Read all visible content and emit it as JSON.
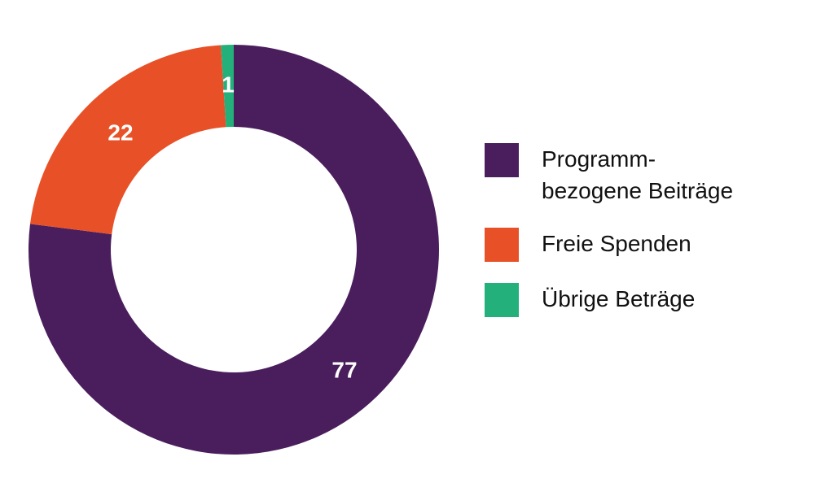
{
  "chart_data": {
    "type": "pie",
    "donut": true,
    "title": "",
    "legend_position": "right",
    "slices": [
      {
        "label": "Programm-\nbezogene Beiträge",
        "value": 77,
        "display": "77",
        "color": "#4a1e5d"
      },
      {
        "label": "Freie Spenden",
        "value": 22,
        "display": "22",
        "color": "#e85127"
      },
      {
        "label": "Übrige Beträge",
        "value": 1,
        "display": "1",
        "color": "#24b07a"
      }
    ]
  }
}
